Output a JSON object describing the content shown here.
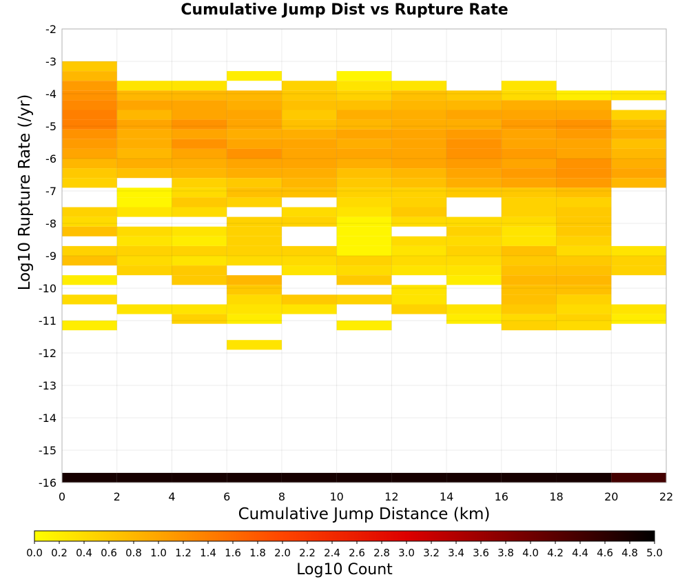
{
  "chart_data": {
    "type": "heatmap",
    "title": "Cumulative Jump Dist vs Rupture Rate",
    "xlabel": "Cumulative Jump Distance (km)",
    "ylabel": "Log10 Rupture Rate (/yr)",
    "xlim": [
      0,
      22
    ],
    "ylim": [
      -16,
      -2
    ],
    "x_ticks": [
      "0",
      "2",
      "4",
      "6",
      "8",
      "10",
      "12",
      "14",
      "16",
      "18",
      "20",
      "22"
    ],
    "y_ticks": [
      "-2",
      "-3",
      "-4",
      "-5",
      "-6",
      "-7",
      "-8",
      "-9",
      "-10",
      "-11",
      "-12",
      "-13",
      "-14",
      "-15",
      "-16"
    ],
    "x_bin_width": 2,
    "y_bin_height": 0.3,
    "grid": true,
    "colorbar": {
      "label": "Log10 Count",
      "range": [
        0,
        5
      ],
      "ticks": [
        "0.0",
        "0.2",
        "0.4",
        "0.6",
        "0.8",
        "1.0",
        "1.2",
        "1.4",
        "1.6",
        "1.8",
        "2.0",
        "2.2",
        "2.4",
        "2.6",
        "2.8",
        "3.0",
        "3.2",
        "3.4",
        "3.6",
        "3.8",
        "4.0",
        "4.2",
        "4.4",
        "4.6",
        "4.8",
        "5.0"
      ],
      "palette": [
        "#ffff00",
        "#ffa500",
        "#ff4500",
        "#dd0000",
        "#700000",
        "#000000"
      ]
    },
    "cells_note": "each column: [x_bin_start, [[y_bin_start, log10_count], ...]]",
    "columns": [
      [
        0,
        [
          [
            -3.3,
            0.6
          ],
          [
            -3.6,
            0.8
          ],
          [
            -3.9,
            1.1
          ],
          [
            -4.2,
            1.2
          ],
          [
            -4.5,
            1.3
          ],
          [
            -4.8,
            1.4
          ],
          [
            -5.1,
            1.4
          ],
          [
            -5.4,
            1.2
          ],
          [
            -5.7,
            1.1
          ],
          [
            -6.0,
            1.0
          ],
          [
            -6.3,
            0.8
          ],
          [
            -6.6,
            0.6
          ],
          [
            -6.9,
            0.5
          ],
          [
            -7.8,
            0.5
          ],
          [
            -8.1,
            0.4
          ],
          [
            -8.4,
            0.7
          ],
          [
            -9.0,
            0.5
          ],
          [
            -9.3,
            0.7
          ],
          [
            -9.9,
            0.2
          ],
          [
            -10.5,
            0.4
          ],
          [
            -11.3,
            0.2
          ],
          [
            -16.0,
            4.8
          ]
        ]
      ],
      [
        2,
        [
          [
            -3.9,
            0.3
          ],
          [
            -4.2,
            0.8
          ],
          [
            -4.5,
            1.0
          ],
          [
            -4.8,
            0.8
          ],
          [
            -5.1,
            1.0
          ],
          [
            -5.4,
            0.9
          ],
          [
            -5.7,
            0.9
          ],
          [
            -6.0,
            0.8
          ],
          [
            -6.3,
            0.9
          ],
          [
            -6.6,
            0.7
          ],
          [
            -7.2,
            0.1
          ],
          [
            -7.5,
            0.1
          ],
          [
            -7.8,
            0.3
          ],
          [
            -8.4,
            0.4
          ],
          [
            -8.7,
            0.3
          ],
          [
            -9.0,
            0.5
          ],
          [
            -9.3,
            0.4
          ],
          [
            -9.6,
            0.5
          ],
          [
            -10.8,
            0.3
          ],
          [
            -16.0,
            4.8
          ]
        ]
      ],
      [
        4,
        [
          [
            -3.9,
            0.3
          ],
          [
            -4.2,
            0.8
          ],
          [
            -4.5,
            1.0
          ],
          [
            -4.8,
            1.0
          ],
          [
            -5.1,
            1.2
          ],
          [
            -5.4,
            1.0
          ],
          [
            -5.7,
            1.2
          ],
          [
            -6.0,
            1.0
          ],
          [
            -6.3,
            0.9
          ],
          [
            -6.6,
            0.8
          ],
          [
            -6.9,
            0.5
          ],
          [
            -7.2,
            0.4
          ],
          [
            -7.5,
            0.6
          ],
          [
            -7.8,
            0.4
          ],
          [
            -8.4,
            0.3
          ],
          [
            -8.7,
            0.2
          ],
          [
            -9.0,
            0.5
          ],
          [
            -9.3,
            0.3
          ],
          [
            -9.6,
            0.6
          ],
          [
            -9.9,
            0.6
          ],
          [
            -10.8,
            0.3
          ],
          [
            -11.1,
            0.5
          ],
          [
            -16.0,
            4.8
          ]
        ]
      ],
      [
        6,
        [
          [
            -3.6,
            0.2
          ],
          [
            -4.2,
            0.8
          ],
          [
            -4.5,
            0.9
          ],
          [
            -4.8,
            1.0
          ],
          [
            -5.1,
            1.0
          ],
          [
            -5.4,
            0.9
          ],
          [
            -5.7,
            1.0
          ],
          [
            -6.0,
            1.2
          ],
          [
            -6.3,
            1.0
          ],
          [
            -6.6,
            0.9
          ],
          [
            -6.9,
            0.6
          ],
          [
            -7.2,
            0.7
          ],
          [
            -7.5,
            0.5
          ],
          [
            -8.1,
            0.5
          ],
          [
            -8.4,
            0.5
          ],
          [
            -8.7,
            0.5
          ],
          [
            -9.0,
            0.5
          ],
          [
            -9.3,
            0.4
          ],
          [
            -9.9,
            0.8
          ],
          [
            -10.2,
            0.6
          ],
          [
            -10.5,
            0.4
          ],
          [
            -10.8,
            0.3
          ],
          [
            -11.1,
            0.2
          ],
          [
            -11.9,
            0.3
          ],
          [
            -16.0,
            4.8
          ]
        ]
      ],
      [
        8,
        [
          [
            -3.9,
            0.5
          ],
          [
            -4.2,
            0.6
          ],
          [
            -4.5,
            0.7
          ],
          [
            -4.8,
            0.6
          ],
          [
            -5.1,
            0.7
          ],
          [
            -5.4,
            0.9
          ],
          [
            -5.7,
            1.0
          ],
          [
            -6.0,
            1.0
          ],
          [
            -6.3,
            1.0
          ],
          [
            -6.6,
            0.9
          ],
          [
            -6.9,
            0.8
          ],
          [
            -7.2,
            0.7
          ],
          [
            -7.8,
            0.4
          ],
          [
            -8.1,
            0.5
          ],
          [
            -9.0,
            0.5
          ],
          [
            -9.3,
            0.4
          ],
          [
            -9.6,
            0.3
          ],
          [
            -10.5,
            0.6
          ],
          [
            -10.8,
            0.3
          ],
          [
            -16.0,
            4.8
          ]
        ]
      ],
      [
        10,
        [
          [
            -3.6,
            0.1
          ],
          [
            -3.9,
            0.3
          ],
          [
            -4.2,
            0.5
          ],
          [
            -4.5,
            0.7
          ],
          [
            -4.8,
            0.9
          ],
          [
            -5.1,
            0.8
          ],
          [
            -5.4,
            1.0
          ],
          [
            -5.7,
            0.9
          ],
          [
            -6.0,
            1.0
          ],
          [
            -6.3,
            0.9
          ],
          [
            -6.6,
            0.7
          ],
          [
            -6.9,
            0.6
          ],
          [
            -7.2,
            0.5
          ],
          [
            -7.5,
            0.4
          ],
          [
            -7.8,
            0.3
          ],
          [
            -8.1,
            0.1
          ],
          [
            -8.4,
            0.1
          ],
          [
            -8.7,
            0.1
          ],
          [
            -9.0,
            0.1
          ],
          [
            -9.3,
            0.5
          ],
          [
            -9.6,
            0.4
          ],
          [
            -9.9,
            0.6
          ],
          [
            -10.5,
            0.5
          ],
          [
            -11.3,
            0.2
          ],
          [
            -16.0,
            4.8
          ]
        ]
      ],
      [
        12,
        [
          [
            -3.9,
            0.3
          ],
          [
            -4.2,
            0.7
          ],
          [
            -4.5,
            0.8
          ],
          [
            -4.8,
            0.9
          ],
          [
            -5.1,
            0.9
          ],
          [
            -5.4,
            1.0
          ],
          [
            -5.7,
            1.0
          ],
          [
            -6.0,
            1.0
          ],
          [
            -6.3,
            1.0
          ],
          [
            -6.6,
            0.8
          ],
          [
            -6.9,
            0.7
          ],
          [
            -7.2,
            0.5
          ],
          [
            -7.5,
            0.5
          ],
          [
            -7.8,
            0.6
          ],
          [
            -8.1,
            0.4
          ],
          [
            -8.7,
            0.4
          ],
          [
            -9.0,
            0.3
          ],
          [
            -9.3,
            0.4
          ],
          [
            -9.6,
            0.3
          ],
          [
            -10.2,
            0.3
          ],
          [
            -10.5,
            0.3
          ],
          [
            -10.8,
            0.5
          ],
          [
            -16.0,
            4.8
          ]
        ]
      ],
      [
        14,
        [
          [
            -4.2,
            0.6
          ],
          [
            -4.5,
            0.8
          ],
          [
            -4.8,
            1.0
          ],
          [
            -5.1,
            0.9
          ],
          [
            -5.4,
            1.1
          ],
          [
            -5.7,
            1.2
          ],
          [
            -6.0,
            1.2
          ],
          [
            -6.3,
            1.1
          ],
          [
            -6.6,
            1.0
          ],
          [
            -6.9,
            0.9
          ],
          [
            -7.2,
            0.6
          ],
          [
            -8.1,
            0.4
          ],
          [
            -8.4,
            0.5
          ],
          [
            -8.7,
            0.4
          ],
          [
            -9.0,
            0.5
          ],
          [
            -9.3,
            0.4
          ],
          [
            -9.6,
            0.3
          ],
          [
            -9.9,
            0.2
          ],
          [
            -10.8,
            0.3
          ],
          [
            -11.1,
            0.2
          ],
          [
            -16.0,
            4.8
          ]
        ]
      ],
      [
        16,
        [
          [
            -3.9,
            0.3
          ],
          [
            -4.2,
            0.4
          ],
          [
            -4.5,
            0.9
          ],
          [
            -4.8,
            1.0
          ],
          [
            -5.1,
            1.1
          ],
          [
            -5.4,
            1.0
          ],
          [
            -5.7,
            1.0
          ],
          [
            -6.0,
            1.1
          ],
          [
            -6.3,
            1.0
          ],
          [
            -6.6,
            1.1
          ],
          [
            -6.9,
            1.0
          ],
          [
            -7.2,
            0.6
          ],
          [
            -7.5,
            0.5
          ],
          [
            -7.8,
            0.5
          ],
          [
            -8.1,
            0.4
          ],
          [
            -8.4,
            0.3
          ],
          [
            -8.7,
            0.3
          ],
          [
            -9.0,
            0.7
          ],
          [
            -9.3,
            0.6
          ],
          [
            -9.6,
            0.7
          ],
          [
            -9.9,
            0.8
          ],
          [
            -10.2,
            0.7
          ],
          [
            -10.5,
            0.7
          ],
          [
            -10.8,
            0.6
          ],
          [
            -11.1,
            0.4
          ],
          [
            -11.3,
            0.5
          ],
          [
            -16.0,
            4.8
          ]
        ]
      ],
      [
        18,
        [
          [
            -4.2,
            0.2
          ],
          [
            -4.5,
            0.9
          ],
          [
            -4.8,
            1.0
          ],
          [
            -5.1,
            1.2
          ],
          [
            -5.4,
            1.1
          ],
          [
            -5.7,
            1.0
          ],
          [
            -6.0,
            1.0
          ],
          [
            -6.3,
            1.2
          ],
          [
            -6.6,
            1.2
          ],
          [
            -6.9,
            1.1
          ],
          [
            -7.2,
            0.7
          ],
          [
            -7.5,
            0.5
          ],
          [
            -7.8,
            0.6
          ],
          [
            -8.1,
            0.6
          ],
          [
            -8.4,
            0.6
          ],
          [
            -8.7,
            0.5
          ],
          [
            -9.0,
            0.4
          ],
          [
            -9.3,
            0.6
          ],
          [
            -9.6,
            0.7
          ],
          [
            -9.9,
            0.8
          ],
          [
            -10.2,
            0.7
          ],
          [
            -10.5,
            0.5
          ],
          [
            -10.8,
            0.4
          ],
          [
            -11.1,
            0.5
          ],
          [
            -11.3,
            0.4
          ],
          [
            -16.0,
            4.8
          ]
        ]
      ],
      [
        20,
        [
          [
            -4.2,
            0.3
          ],
          [
            -4.8,
            0.5
          ],
          [
            -5.1,
            0.8
          ],
          [
            -5.4,
            0.9
          ],
          [
            -5.7,
            0.7
          ],
          [
            -6.0,
            0.8
          ],
          [
            -6.3,
            0.9
          ],
          [
            -6.6,
            1.0
          ],
          [
            -6.9,
            0.8
          ],
          [
            -9.0,
            0.3
          ],
          [
            -9.3,
            0.5
          ],
          [
            -9.6,
            0.5
          ],
          [
            -10.8,
            0.3
          ],
          [
            -11.1,
            0.2
          ],
          [
            -16.0,
            4.4
          ]
        ]
      ]
    ]
  }
}
